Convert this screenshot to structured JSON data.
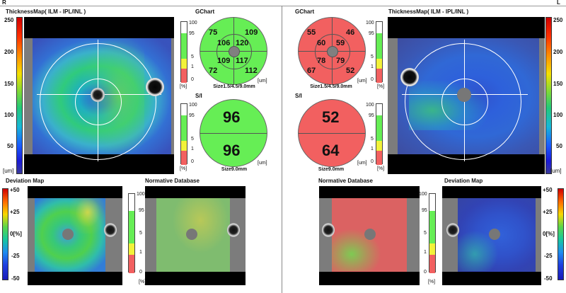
{
  "header": {
    "left_eye": "R",
    "right_eye": "L"
  },
  "colors": {
    "normal": "#66ee55",
    "borderline": "#f2f23a",
    "abnormal": "#f26060",
    "white": "#ffffff"
  },
  "left": {
    "thickness_map": {
      "title": "ThicknessMap( ILM - IPL/INL )",
      "scale": [
        "250",
        "200",
        "150",
        "100",
        "50",
        "[um]"
      ]
    },
    "gchart": {
      "title": "GChart",
      "values": {
        "outer_top_left": "75",
        "outer_top_right": "109",
        "inner_top_left": "106",
        "inner_top_right": "120",
        "inner_bottom_left": "109",
        "inner_bottom_right": "117",
        "outer_bottom_left": "72",
        "outer_bottom_right": "112"
      },
      "unit": "[um]",
      "size_label": "Size1.5/4.5/9.0mm"
    },
    "si": {
      "title": "S/I",
      "superior": "96",
      "inferior": "96",
      "unit": "[um]",
      "size_label": "Size9.0mm"
    },
    "legend_labels": [
      "100",
      "95",
      "5",
      "1",
      "0",
      "[%]"
    ],
    "deviation_map": {
      "title": "Deviation Map",
      "scale": [
        "+50",
        "+25",
        "0[%]",
        "-25",
        "-50"
      ]
    },
    "normative": {
      "title": "Normative Database",
      "labels": [
        "100",
        "95",
        "5",
        "1",
        "0",
        "[%]"
      ]
    }
  },
  "right": {
    "thickness_map": {
      "title": "ThicknessMap( ILM - IPL/INL )",
      "scale": [
        "250",
        "200",
        "150",
        "100",
        "50",
        "[um]"
      ]
    },
    "gchart": {
      "title": "GChart",
      "values": {
        "outer_top_left": "55",
        "outer_top_right": "46",
        "inner_top_left": "60",
        "inner_top_right": "59",
        "inner_bottom_left": "78",
        "inner_bottom_right": "79",
        "outer_bottom_left": "67",
        "outer_bottom_right": "52"
      },
      "unit": "[um]",
      "size_label": "Size1.5/4.5/9.0mm"
    },
    "si": {
      "title": "S/I",
      "superior": "52",
      "inferior": "64",
      "unit": "[um]",
      "size_label": "Size9.0mm"
    },
    "legend_labels": [
      "100",
      "95",
      "5",
      "1",
      "0",
      "[%]"
    ],
    "normative": {
      "title": "Normative Database",
      "labels": [
        "100",
        "95",
        "5",
        "1",
        "0",
        "[%]"
      ]
    },
    "deviation_map": {
      "title": "Deviation Map",
      "scale": [
        "+50",
        "+25",
        "0[%]",
        "-25",
        "-50"
      ]
    }
  }
}
